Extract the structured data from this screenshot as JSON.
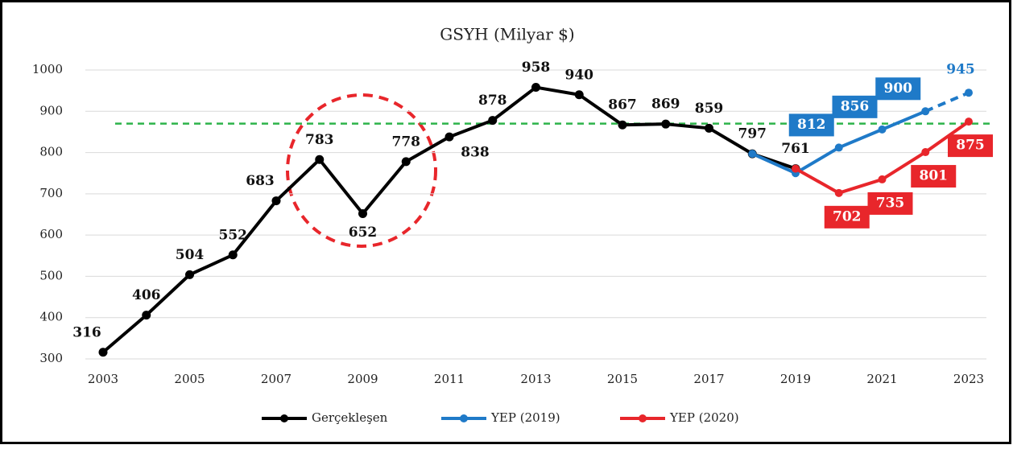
{
  "chart_data": {
    "type": "line",
    "title": "GSYH (Milyar $)",
    "xlim": [
      2003,
      2023
    ],
    "xticks": [
      2003,
      2005,
      2007,
      2009,
      2011,
      2013,
      2015,
      2017,
      2019,
      2021,
      2023
    ],
    "ylim": [
      300,
      1000
    ],
    "yticks": [
      300,
      400,
      500,
      600,
      700,
      800,
      900,
      1000
    ],
    "grid": true,
    "reference_line": {
      "value": 870,
      "color": "#2db34a"
    },
    "legend": "bottom",
    "series": [
      {
        "name": "Gerçekleşen",
        "color": "#000000",
        "x": [
          2003,
          2004,
          2005,
          2006,
          2007,
          2008,
          2009,
          2010,
          2011,
          2012,
          2013,
          2014,
          2015,
          2016,
          2017,
          2018,
          2019
        ],
        "values": [
          316,
          406,
          504,
          552,
          683,
          783,
          652,
          778,
          838,
          878,
          958,
          940,
          867,
          869,
          859,
          797,
          761
        ]
      },
      {
        "name": "YEP (2019)",
        "color": "#1f7ac8",
        "dashed_from": 2022,
        "x": [
          2018,
          2019,
          2020,
          2021,
          2022,
          2023
        ],
        "values": [
          797,
          750,
          812,
          856,
          900,
          945
        ],
        "value_labels": [
          null,
          null,
          "812",
          "856",
          "900",
          "945"
        ]
      },
      {
        "name": "YEP (2020)",
        "color": "#e8262b",
        "x": [
          2019,
          2020,
          2021,
          2022,
          2023
        ],
        "values": [
          761,
          702,
          735,
          801,
          875
        ],
        "value_labels": [
          null,
          "702",
          "735",
          "801",
          "875"
        ]
      }
    ]
  }
}
